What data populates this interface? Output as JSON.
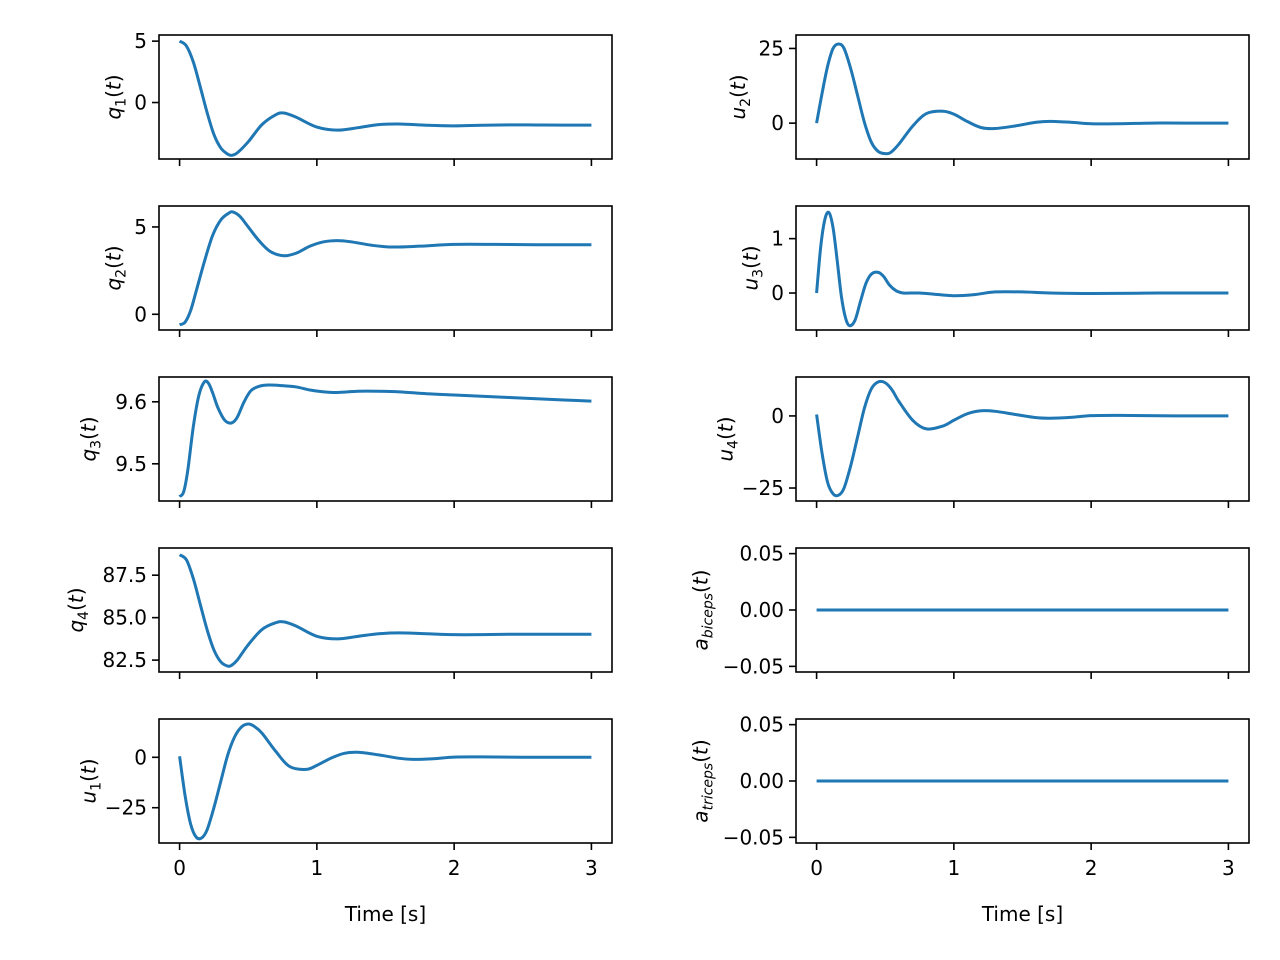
{
  "chart_data": [
    {
      "id": "q1",
      "type": "line",
      "column": "left",
      "row": 0,
      "ylabel": {
        "base": "q",
        "sub": "1",
        "suffix": "(t)"
      },
      "xlabel": "",
      "xlim": [
        -0.15,
        3.15
      ],
      "ylim": [
        -4.6,
        5.5
      ],
      "xticks": [
        0,
        1,
        2,
        3
      ],
      "xticklabels_visible": false,
      "yticks": [
        5,
        0
      ],
      "yticklabels": [
        "5",
        "0"
      ],
      "series": [
        {
          "name": "q1(t)",
          "color": "#1f77b4",
          "x": [
            0,
            0.05,
            0.1,
            0.15,
            0.2,
            0.25,
            0.3,
            0.35,
            0.38,
            0.42,
            0.5,
            0.6,
            0.7,
            0.76,
            0.85,
            1.0,
            1.15,
            1.3,
            1.45,
            1.6,
            1.8,
            2.0,
            2.2,
            2.4,
            2.6,
            2.8,
            3.0
          ],
          "y": [
            5.0,
            4.6,
            3.3,
            1.3,
            -0.8,
            -2.6,
            -3.7,
            -4.2,
            -4.3,
            -4.1,
            -3.2,
            -1.8,
            -1.0,
            -0.85,
            -1.2,
            -2.0,
            -2.25,
            -2.05,
            -1.8,
            -1.75,
            -1.85,
            -1.9,
            -1.85,
            -1.82,
            -1.83,
            -1.84,
            -1.84
          ]
        }
      ]
    },
    {
      "id": "u2",
      "type": "line",
      "column": "right",
      "row": 0,
      "ylabel": {
        "base": "u",
        "sub": "2",
        "suffix": "(t)"
      },
      "xlabel": "",
      "xlim": [
        -0.15,
        3.15
      ],
      "ylim": [
        -12,
        29.5
      ],
      "xticks": [
        0,
        1,
        2,
        3
      ],
      "xticklabels_visible": false,
      "yticks": [
        25,
        0
      ],
      "yticklabels": [
        "25",
        "0"
      ],
      "series": [
        {
          "name": "u2(t)",
          "color": "#1f77b4",
          "x": [
            0,
            0.04,
            0.08,
            0.12,
            0.16,
            0.2,
            0.25,
            0.3,
            0.35,
            0.4,
            0.45,
            0.5,
            0.54,
            0.6,
            0.7,
            0.8,
            0.92,
            1.0,
            1.1,
            1.2,
            1.3,
            1.45,
            1.6,
            1.7,
            1.85,
            2.0,
            2.2,
            2.5,
            2.8,
            3.0
          ],
          "y": [
            0,
            10,
            19,
            25,
            26.5,
            25,
            18,
            9,
            0,
            -6.5,
            -9.5,
            -10.2,
            -9.8,
            -7,
            -1,
            3.2,
            4.0,
            3.0,
            0.5,
            -1.5,
            -1.8,
            -0.9,
            0.3,
            0.6,
            0.3,
            -0.2,
            -0.2,
            0.05,
            0.0,
            0.0
          ]
        }
      ]
    },
    {
      "id": "q2",
      "type": "line",
      "column": "left",
      "row": 1,
      "ylabel": {
        "base": "q",
        "sub": "2",
        "suffix": "(t)"
      },
      "xlabel": "",
      "xlim": [
        -0.15,
        3.15
      ],
      "ylim": [
        -0.9,
        6.2
      ],
      "xticks": [
        0,
        1,
        2,
        3
      ],
      "xticklabels_visible": false,
      "yticks": [
        5,
        0
      ],
      "yticklabels": [
        "5",
        "0"
      ],
      "series": [
        {
          "name": "q2(t)",
          "color": "#1f77b4",
          "x": [
            0,
            0.04,
            0.08,
            0.12,
            0.18,
            0.24,
            0.3,
            0.36,
            0.39,
            0.44,
            0.5,
            0.58,
            0.66,
            0.76,
            0.85,
            0.95,
            1.05,
            1.15,
            1.25,
            1.4,
            1.55,
            1.75,
            2.0,
            2.3,
            2.6,
            3.0
          ],
          "y": [
            -0.6,
            -0.45,
            0.2,
            1.3,
            3.0,
            4.5,
            5.4,
            5.8,
            5.85,
            5.6,
            5.0,
            4.2,
            3.6,
            3.35,
            3.5,
            3.9,
            4.15,
            4.22,
            4.15,
            3.95,
            3.85,
            3.9,
            4.0,
            4.0,
            3.98,
            3.98
          ]
        }
      ]
    },
    {
      "id": "u3",
      "type": "line",
      "column": "right",
      "row": 1,
      "ylabel": {
        "base": "u",
        "sub": "3",
        "suffix": "(t)"
      },
      "xlabel": "",
      "xlim": [
        -0.15,
        3.15
      ],
      "ylim": [
        -0.68,
        1.6
      ],
      "xticks": [
        0,
        1,
        2,
        3
      ],
      "xticklabels_visible": false,
      "yticks": [
        1,
        0
      ],
      "yticklabels": [
        "1",
        "0"
      ],
      "series": [
        {
          "name": "u3(t)",
          "color": "#1f77b4",
          "x": [
            0,
            0.03,
            0.06,
            0.09,
            0.12,
            0.15,
            0.18,
            0.21,
            0.24,
            0.28,
            0.32,
            0.36,
            0.4,
            0.45,
            0.49,
            0.53,
            0.58,
            0.63,
            0.68,
            0.75,
            0.85,
            1.0,
            1.15,
            1.3,
            1.5,
            1.7,
            2.0,
            2.5,
            3.0
          ],
          "y": [
            0,
            0.85,
            1.35,
            1.48,
            1.2,
            0.6,
            -0.05,
            -0.45,
            -0.6,
            -0.5,
            -0.15,
            0.18,
            0.35,
            0.38,
            0.3,
            0.15,
            0.04,
            0.0,
            0.0,
            0.0,
            -0.02,
            -0.05,
            -0.03,
            0.02,
            0.02,
            0.0,
            -0.01,
            0.0,
            0.0
          ]
        }
      ]
    },
    {
      "id": "q3",
      "type": "line",
      "column": "left",
      "row": 2,
      "ylabel": {
        "base": "q",
        "sub": "3",
        "suffix": "(t)"
      },
      "xlabel": "",
      "xlim": [
        -0.15,
        3.15
      ],
      "ylim": [
        9.44,
        9.64
      ],
      "xticks": [
        0,
        1,
        2,
        3
      ],
      "xticklabels_visible": false,
      "yticks": [
        9.6,
        9.5
      ],
      "yticklabels": [
        "9.6",
        "9.5"
      ],
      "series": [
        {
          "name": "q3(t)",
          "color": "#1f77b4",
          "x": [
            0,
            0.03,
            0.06,
            0.1,
            0.14,
            0.18,
            0.21,
            0.24,
            0.28,
            0.33,
            0.38,
            0.42,
            0.47,
            0.52,
            0.58,
            0.65,
            0.75,
            0.85,
            0.95,
            1.05,
            1.15,
            1.3,
            1.45,
            1.6,
            1.8,
            2.0,
            2.2,
            2.4,
            2.6,
            2.8,
            3.0
          ],
          "y": [
            9.447,
            9.455,
            9.49,
            9.56,
            9.61,
            9.632,
            9.63,
            9.615,
            9.59,
            9.57,
            9.566,
            9.575,
            9.6,
            9.618,
            9.625,
            9.627,
            9.626,
            9.624,
            9.619,
            9.616,
            9.615,
            9.617,
            9.617,
            9.616,
            9.613,
            9.611,
            9.609,
            9.607,
            9.605,
            9.603,
            9.601
          ]
        }
      ]
    },
    {
      "id": "u4",
      "type": "line",
      "column": "right",
      "row": 2,
      "ylabel": {
        "base": "u",
        "sub": "4",
        "suffix": "(t)"
      },
      "xlabel": "",
      "xlim": [
        -0.15,
        3.15
      ],
      "ylim": [
        -29.5,
        13.5
      ],
      "xticks": [
        0,
        1,
        2,
        3
      ],
      "xticklabels_visible": false,
      "yticks": [
        0,
        -25
      ],
      "yticklabels": [
        "0",
        "−25"
      ],
      "series": [
        {
          "name": "u4(t)",
          "color": "#1f77b4",
          "x": [
            0,
            0.04,
            0.08,
            0.12,
            0.16,
            0.2,
            0.25,
            0.3,
            0.35,
            0.4,
            0.45,
            0.5,
            0.55,
            0.6,
            0.7,
            0.8,
            0.92,
            1.0,
            1.1,
            1.2,
            1.3,
            1.45,
            1.6,
            1.7,
            1.85,
            2.0,
            2.2,
            2.5,
            2.8,
            3.0
          ],
          "y": [
            0.5,
            -13,
            -23,
            -27,
            -27.5,
            -25,
            -17,
            -7,
            3,
            9.5,
            11.8,
            11.5,
            9,
            5,
            -1.5,
            -4.5,
            -3.5,
            -1.5,
            0.8,
            1.8,
            1.6,
            0.5,
            -0.6,
            -0.8,
            -0.5,
            0.1,
            0.2,
            0.05,
            0.0,
            0.0
          ]
        }
      ]
    },
    {
      "id": "q4",
      "type": "line",
      "column": "left",
      "row": 3,
      "ylabel": {
        "base": "q",
        "sub": "4",
        "suffix": "(t)"
      },
      "xlabel": "",
      "xlim": [
        -0.15,
        3.15
      ],
      "ylim": [
        81.8,
        89.1
      ],
      "xticks": [
        0,
        1,
        2,
        3
      ],
      "xticklabels_visible": false,
      "yticks": [
        87.5,
        85.0,
        82.5
      ],
      "yticklabels": [
        "87.5",
        "85.0",
        "82.5"
      ],
      "series": [
        {
          "name": "q4(t)",
          "color": "#1f77b4",
          "x": [
            0,
            0.05,
            0.1,
            0.15,
            0.2,
            0.25,
            0.3,
            0.35,
            0.38,
            0.42,
            0.5,
            0.6,
            0.7,
            0.76,
            0.85,
            1.0,
            1.15,
            1.3,
            1.45,
            1.6,
            1.8,
            2.0,
            2.2,
            2.4,
            2.6,
            2.8,
            3.0
          ],
          "y": [
            88.7,
            88.4,
            87.3,
            85.8,
            84.3,
            83.1,
            82.4,
            82.15,
            82.2,
            82.5,
            83.4,
            84.3,
            84.7,
            84.75,
            84.5,
            83.9,
            83.75,
            83.9,
            84.05,
            84.1,
            84.05,
            84.0,
            84.0,
            84.02,
            84.02,
            84.02,
            84.02
          ]
        }
      ]
    },
    {
      "id": "a_biceps",
      "type": "line",
      "column": "right",
      "row": 3,
      "ylabel": {
        "base": "a",
        "sub": "biceps",
        "suffix": "(t)"
      },
      "xlabel": "",
      "xlim": [
        -0.15,
        3.15
      ],
      "ylim": [
        -0.055,
        0.055
      ],
      "xticks": [
        0,
        1,
        2,
        3
      ],
      "xticklabels_visible": false,
      "yticks": [
        0.05,
        0.0,
        -0.05
      ],
      "yticklabels": [
        "0.05",
        "0.00",
        "−0.05"
      ],
      "series": [
        {
          "name": "a_biceps(t)",
          "color": "#1f77b4",
          "x": [
            0,
            3
          ],
          "y": [
            0,
            0
          ]
        }
      ]
    },
    {
      "id": "u1",
      "type": "line",
      "column": "left",
      "row": 4,
      "ylabel": {
        "base": "u",
        "sub": "1",
        "suffix": "(t)"
      },
      "xlabel": "Time [s]",
      "xlim": [
        -0.15,
        3.15
      ],
      "ylim": [
        -42.5,
        19
      ],
      "xticks": [
        0,
        1,
        2,
        3
      ],
      "xticklabels_visible": true,
      "xticklabels": [
        "0",
        "1",
        "2",
        "3"
      ],
      "yticks": [
        0,
        -25
      ],
      "yticklabels": [
        "0",
        "−25"
      ],
      "series": [
        {
          "name": "u1(t)",
          "color": "#1f77b4",
          "x": [
            0,
            0.04,
            0.08,
            0.12,
            0.16,
            0.2,
            0.25,
            0.3,
            0.35,
            0.4,
            0.45,
            0.5,
            0.54,
            0.6,
            0.7,
            0.8,
            0.92,
            1.0,
            1.1,
            1.2,
            1.3,
            1.45,
            1.6,
            1.7,
            1.85,
            2.0,
            2.2,
            2.5,
            2.8,
            3.0
          ],
          "y": [
            0.5,
            -19,
            -33,
            -39.5,
            -40,
            -36,
            -25,
            -12,
            1,
            10,
            15,
            16.5,
            15.5,
            12,
            3,
            -4.5,
            -6,
            -4,
            -0.5,
            2.0,
            2.5,
            1.2,
            -0.5,
            -1.0,
            -0.7,
            0.1,
            0.2,
            0.05,
            0.0,
            0.0
          ]
        }
      ]
    },
    {
      "id": "a_triceps",
      "type": "line",
      "column": "right",
      "row": 4,
      "ylabel": {
        "base": "a",
        "sub": "triceps",
        "suffix": "(t)"
      },
      "xlabel": "Time [s]",
      "xlim": [
        -0.15,
        3.15
      ],
      "ylim": [
        -0.055,
        0.055
      ],
      "xticks": [
        0,
        1,
        2,
        3
      ],
      "xticklabels_visible": true,
      "xticklabels": [
        "0",
        "1",
        "2",
        "3"
      ],
      "yticks": [
        0.05,
        0.0,
        -0.05
      ],
      "yticklabels": [
        "0.05",
        "0.00",
        "−0.05"
      ],
      "series": [
        {
          "name": "a_triceps(t)",
          "color": "#1f77b4",
          "x": [
            0,
            3
          ],
          "y": [
            0,
            0
          ]
        }
      ]
    }
  ]
}
